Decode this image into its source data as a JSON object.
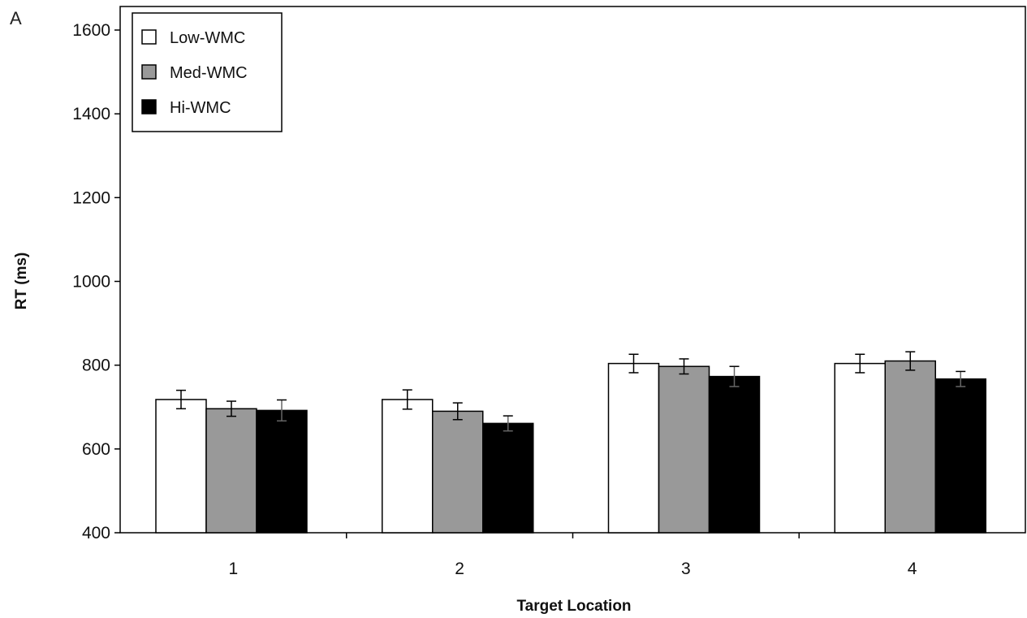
{
  "panel_label": "A",
  "chart_data": {
    "type": "bar",
    "title": "",
    "xlabel": "Target Location",
    "ylabel": "RT (ms)",
    "categories": [
      "1",
      "2",
      "3",
      "4"
    ],
    "ylim": [
      400,
      1600
    ],
    "yticks": [
      "400",
      "600",
      "800",
      "1000",
      "1200",
      "1400",
      "1600"
    ],
    "grid": false,
    "legend_position": "top-left",
    "series": [
      {
        "name": "Low-WMC",
        "color": "#ffffff",
        "values": [
          718,
          718,
          804,
          804
        ],
        "errors": [
          22,
          23,
          22,
          22
        ]
      },
      {
        "name": "Med-WMC",
        "color": "#999999",
        "values": [
          696,
          690,
          797,
          810
        ],
        "errors": [
          18,
          20,
          18,
          22
        ]
      },
      {
        "name": "Hi-WMC",
        "color": "#000000",
        "values": [
          692,
          661,
          773,
          767
        ],
        "errors": [
          25,
          18,
          24,
          18
        ]
      }
    ]
  }
}
